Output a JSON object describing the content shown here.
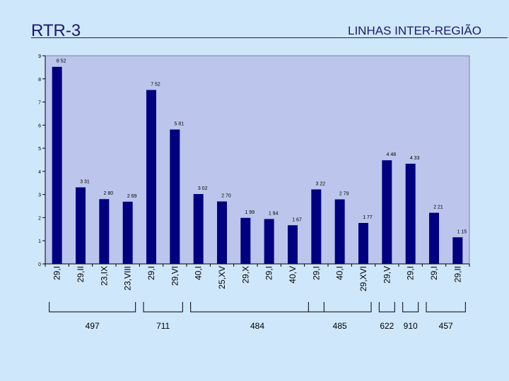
{
  "header": {
    "title": "RTR-3",
    "subtitle": "LINHAS INTER-REGIÃO"
  },
  "chart_data": {
    "type": "bar",
    "categories": [
      "29,I",
      "29,II",
      "23,IX",
      "23,VIII",
      "29,I",
      "29,VI",
      "40,I",
      "25,XV",
      "29,X",
      "29,I",
      "40,V",
      "29,I",
      "40,I",
      "29,XVI",
      "29,V",
      "29,I",
      "29,I",
      "29,II"
    ],
    "values": [
      8.52,
      3.31,
      2.8,
      2.69,
      7.52,
      5.81,
      3.02,
      2.7,
      1.99,
      1.94,
      1.67,
      3.22,
      2.79,
      1.77,
      4.48,
      4.33,
      2.21,
      1.15
    ],
    "value_labels": [
      "8 52",
      "3 31",
      "2 80",
      "2 69",
      "7 52",
      "5 81",
      "3 02",
      "2 70",
      "1 99",
      "1 94",
      "1 67",
      "3 22",
      "2 79",
      "1 77",
      "4 48",
      "4 33",
      "2 21",
      "1 15"
    ],
    "ylim": [
      0,
      9
    ],
    "yticks": [
      0,
      1,
      2,
      3,
      4,
      5,
      6,
      7,
      8,
      9
    ],
    "grid": false,
    "colors": {
      "bar": "#000080",
      "plot_bg": "#bcc6ec",
      "axis": "#000000"
    },
    "groups": [
      {
        "label": "497",
        "start": 0,
        "end": 3
      },
      {
        "label": "711",
        "start": 4,
        "end": 5
      },
      {
        "label": "484",
        "start": 6,
        "end": 11
      },
      {
        "label": "485",
        "start": 11,
        "end": 13
      },
      {
        "label": "622",
        "start": 14,
        "end": 14
      },
      {
        "label": "910",
        "start": 15,
        "end": 15
      },
      {
        "label": "457",
        "start": 16,
        "end": 17
      }
    ]
  }
}
